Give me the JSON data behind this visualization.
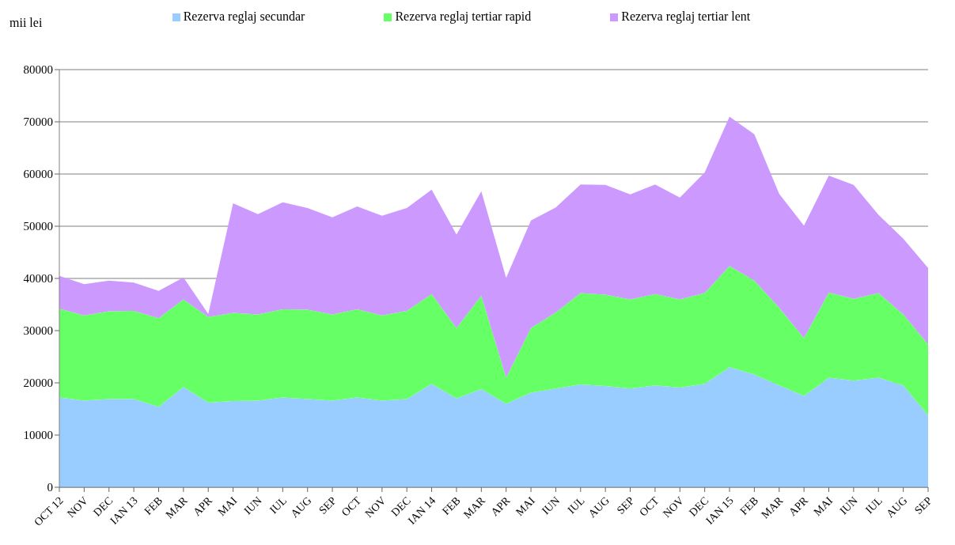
{
  "chart_data": {
    "type": "area",
    "stacked": true,
    "ylabel": "mii lei",
    "categories": [
      "OCT 12",
      "NOV",
      "DEC",
      "IAN 13",
      "FEB",
      "MAR",
      "APR",
      "MAI",
      "IUN",
      "IUL",
      "AUG",
      "SEP",
      "OCT",
      "NOV",
      "DEC",
      "IAN 14",
      "FEB",
      "MAR",
      "APR",
      "MAI",
      "IUN",
      "IUL",
      "AUG",
      "SEP",
      "OCT",
      "NOV",
      "DEC",
      "IAN 15",
      "FEB",
      "MAR",
      "APR",
      "MAI",
      "IUN",
      "IUL",
      "AUG",
      "SEP"
    ],
    "series": [
      {
        "name": "Rezerva reglaj secundar",
        "color": "#99ccff",
        "values": [
          17200,
          16600,
          16900,
          16900,
          15400,
          19200,
          16200,
          16500,
          16600,
          17200,
          16900,
          16600,
          17200,
          16600,
          16900,
          19800,
          17000,
          18800,
          16000,
          18100,
          18900,
          19700,
          19400,
          18900,
          19500,
          19100,
          19800,
          23000,
          21600,
          19500,
          17500,
          21000,
          20400,
          21000,
          19500,
          13800
        ]
      },
      {
        "name": "Rezerva reglaj tertiar rapid",
        "color": "#66ff66",
        "values": [
          17000,
          16300,
          16800,
          16900,
          17000,
          16800,
          16400,
          16900,
          16500,
          16900,
          17100,
          16500,
          16900,
          16300,
          16900,
          17200,
          13500,
          17900,
          5000,
          12400,
          14600,
          17500,
          17500,
          17100,
          17500,
          16900,
          17400,
          19400,
          18000,
          14900,
          11100,
          16300,
          15700,
          16200,
          13600,
          13600
        ]
      },
      {
        "name": "Rezerva reglaj tertiar lent",
        "color": "#cc99ff",
        "values": [
          6300,
          6000,
          5900,
          5400,
          5200,
          4200,
          600,
          21000,
          19200,
          20500,
          19500,
          18600,
          19700,
          19100,
          19700,
          20000,
          17900,
          20000,
          19100,
          20600,
          20100,
          20800,
          21000,
          20100,
          21000,
          19500,
          23100,
          28600,
          28000,
          21800,
          21500,
          22400,
          21800,
          15000,
          14500,
          14600
        ]
      }
    ],
    "ylim": [
      0,
      80000
    ],
    "yticks": [
      0,
      10000,
      20000,
      30000,
      40000,
      50000,
      60000,
      70000,
      80000
    ],
    "grid": "y",
    "legend": "top"
  }
}
